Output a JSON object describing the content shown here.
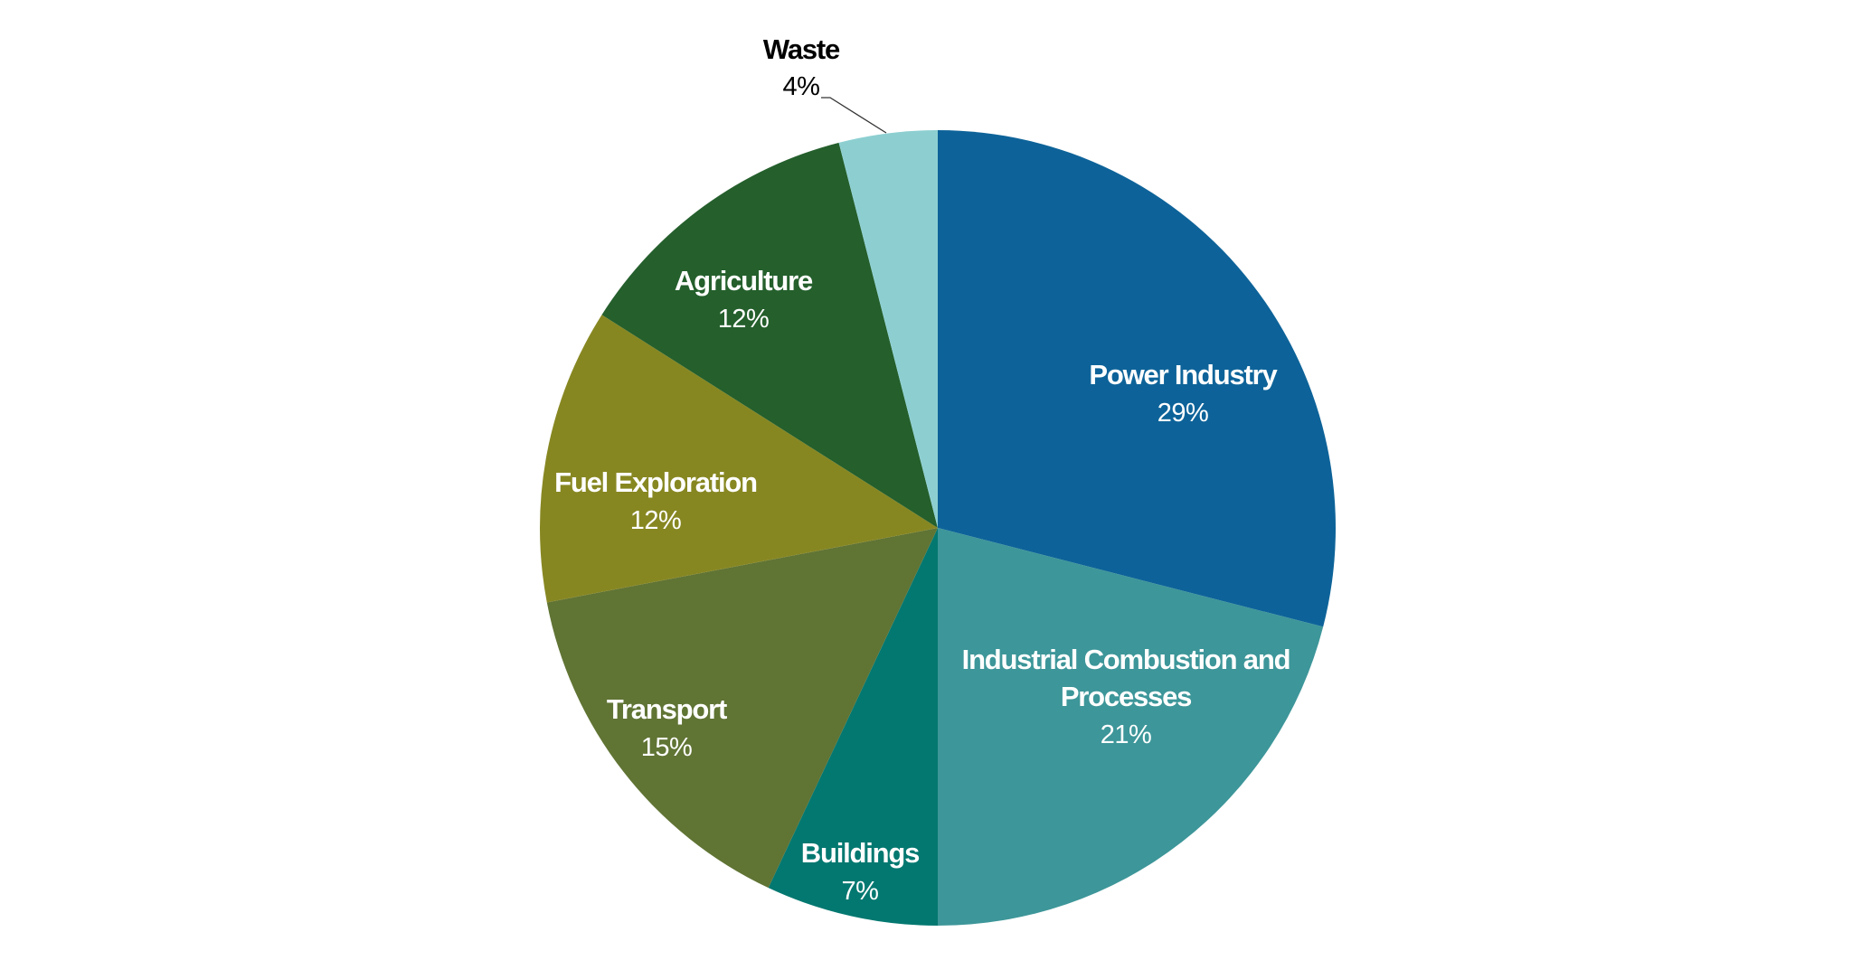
{
  "chart_data": {
    "type": "pie",
    "title": "",
    "start_angle": "top",
    "direction": "clockwise",
    "slices": [
      {
        "label": "Power Industry",
        "value": 29,
        "value_label": "29%",
        "color": "#0d6399",
        "label_color": "#ffffff"
      },
      {
        "label": "Industrial Combustion and Processes",
        "label_lines": [
          "Industrial Combustion and",
          "Processes"
        ],
        "value": 21,
        "value_label": "21%",
        "color": "#3d9699",
        "label_color": "#ffffff"
      },
      {
        "label": "Buildings",
        "value": 7,
        "value_label": "7%",
        "color": "#037870",
        "label_color": "#ffffff"
      },
      {
        "label": "Transport",
        "value": 15,
        "value_label": "15%",
        "color": "#607434",
        "label_color": "#ffffff"
      },
      {
        "label": "Fuel Exploration",
        "value": 12,
        "value_label": "12%",
        "color": "#878722",
        "label_color": "#ffffff"
      },
      {
        "label": "Agriculture",
        "value": 12,
        "value_label": "12%",
        "color": "#245f2c",
        "label_color": "#ffffff"
      },
      {
        "label": "Waste",
        "value": 4,
        "value_label": "4%",
        "color": "#8dcfd1",
        "label_color": "#000000",
        "label_outside": true
      }
    ]
  }
}
